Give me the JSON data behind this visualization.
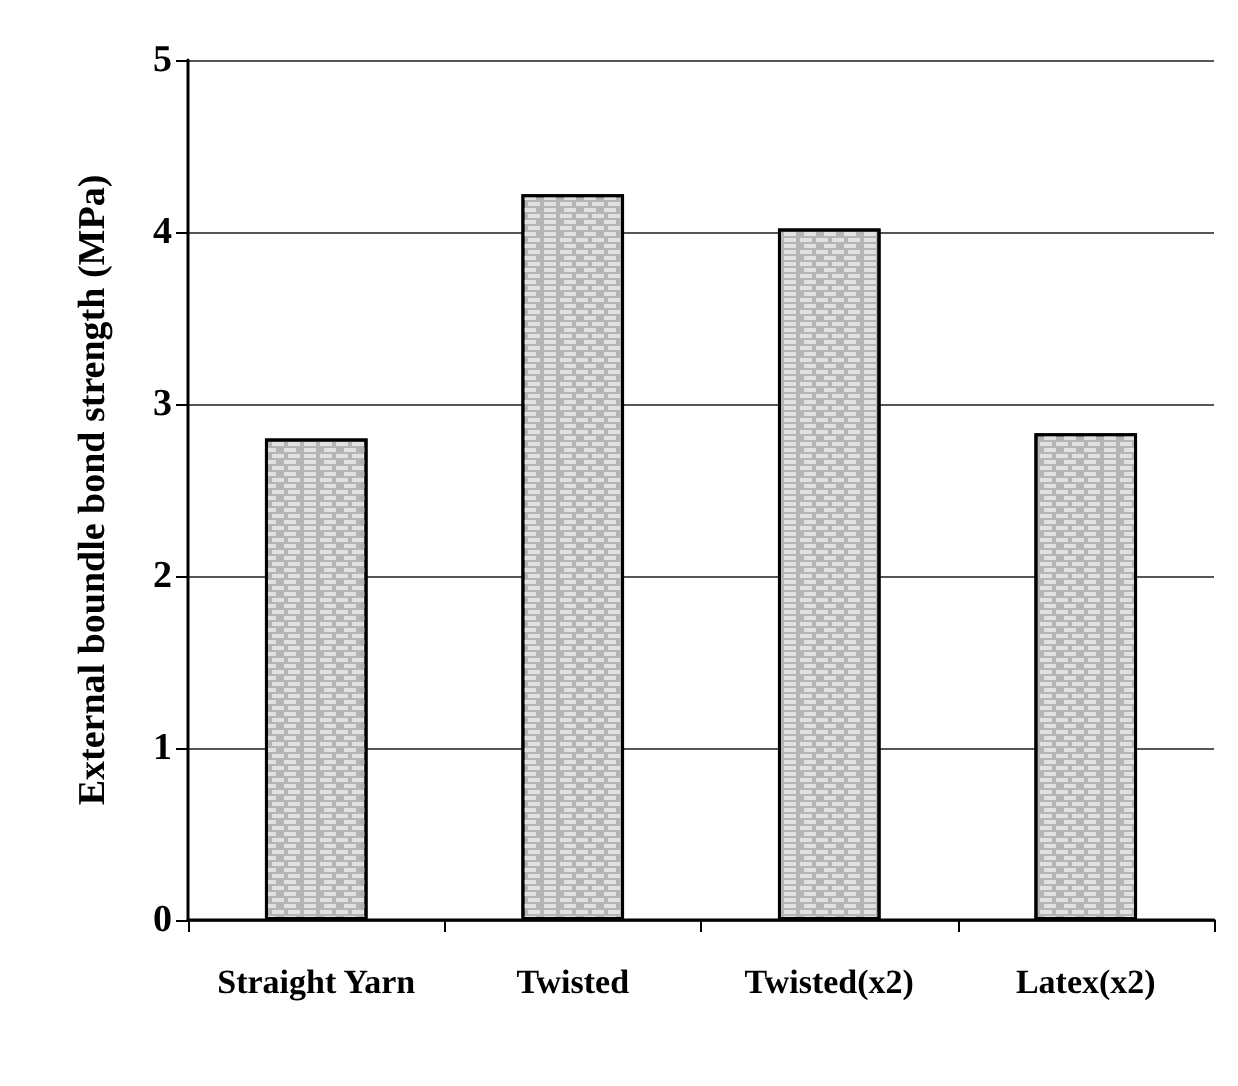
{
  "chart_data": {
    "type": "bar",
    "ylabel": "External boundle bond strength (MPa)",
    "categories": [
      "Straight Yarn",
      "Twisted",
      "Twisted(x2)",
      "Latex(x2)"
    ],
    "values": [
      2.8,
      4.22,
      4.02,
      2.83
    ],
    "color": "#b4b4b4",
    "ylim": [
      0,
      5
    ],
    "yticks": [
      0,
      1,
      2,
      3,
      4,
      5
    ],
    "grid": "y"
  }
}
